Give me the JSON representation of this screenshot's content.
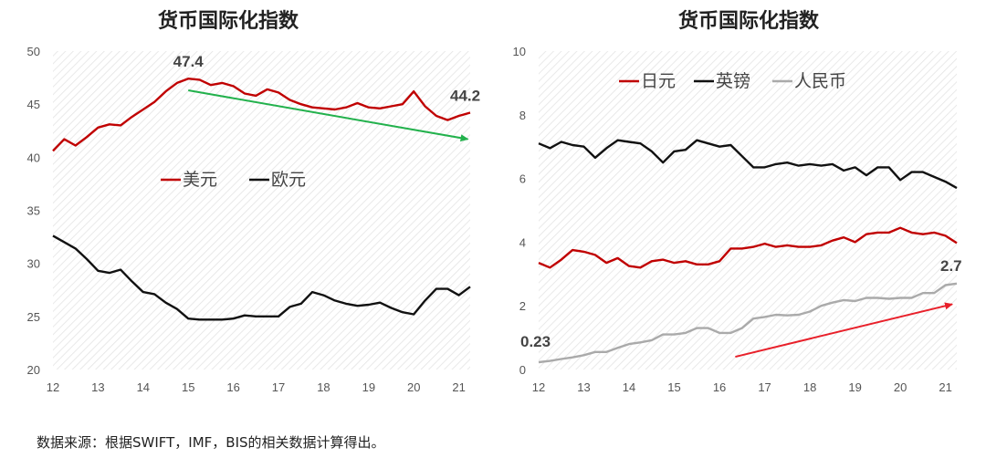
{
  "source": "数据来源：根据SWIFT，IMF，BIS的相关数据计算得出。",
  "colors": {
    "red": "#c00000",
    "black": "#111111",
    "gray": "#aaaaaa",
    "green_arrow": "#22b14c",
    "red_arrow": "#e8202a"
  },
  "chart_data": [
    {
      "type": "line",
      "title": "货币国际化指数",
      "x_ticks": [
        "12",
        "13",
        "14",
        "15",
        "16",
        "17",
        "18",
        "19",
        "20",
        "21"
      ],
      "xlim": [
        12,
        21.25
      ],
      "ylim": [
        20,
        50
      ],
      "y_ticks": [
        "20",
        "25",
        "30",
        "35",
        "40",
        "45",
        "50"
      ],
      "grid": "hatched",
      "legend_placement": "center",
      "series": [
        {
          "name": "美元",
          "color": "#c00000",
          "x": [
            12,
            12.25,
            12.5,
            12.75,
            13,
            13.25,
            13.5,
            13.75,
            14,
            14.25,
            14.5,
            14.75,
            15,
            15.25,
            15.5,
            15.75,
            16,
            16.25,
            16.5,
            16.75,
            17,
            17.25,
            17.5,
            17.75,
            18,
            18.25,
            18.5,
            18.75,
            19,
            19.25,
            19.5,
            19.75,
            20,
            20.25,
            20.5,
            20.75,
            21,
            21.25
          ],
          "values": [
            40.6,
            41.7,
            41.1,
            41.9,
            42.8,
            43.1,
            43.0,
            43.8,
            44.5,
            45.2,
            46.2,
            47.0,
            47.4,
            47.3,
            46.8,
            47.0,
            46.7,
            46.0,
            45.8,
            46.4,
            46.1,
            45.4,
            45.0,
            44.7,
            44.6,
            44.5,
            44.7,
            45.1,
            44.7,
            44.6,
            44.8,
            45.0,
            46.2,
            44.8,
            43.9,
            43.5,
            43.9,
            44.2
          ]
        },
        {
          "name": "欧元",
          "color": "#111111",
          "x": [
            12,
            12.25,
            12.5,
            12.75,
            13,
            13.25,
            13.5,
            13.75,
            14,
            14.25,
            14.5,
            14.75,
            15,
            15.25,
            15.5,
            15.75,
            16,
            16.25,
            16.5,
            16.75,
            17,
            17.25,
            17.5,
            17.75,
            18,
            18.25,
            18.5,
            18.75,
            19,
            19.25,
            19.5,
            19.75,
            20,
            20.25,
            20.5,
            20.75,
            21,
            21.25
          ],
          "values": [
            32.6,
            32.0,
            31.4,
            30.4,
            29.3,
            29.1,
            29.4,
            28.3,
            27.3,
            27.1,
            26.3,
            25.7,
            24.8,
            24.7,
            24.7,
            24.7,
            24.8,
            25.1,
            25.0,
            25.0,
            25.0,
            25.9,
            26.2,
            27.3,
            27.0,
            26.5,
            26.2,
            26.0,
            26.1,
            26.3,
            25.8,
            25.4,
            25.2,
            26.5,
            27.6,
            27.6,
            27.0,
            27.8
          ]
        }
      ],
      "annotations": [
        {
          "text": "47.4",
          "x": 15,
          "y": 47.4
        },
        {
          "text": "44.2",
          "x": 21.25,
          "y": 44.2
        }
      ],
      "arrow": {
        "color": "#22b14c",
        "from": [
          15,
          46.3
        ],
        "to": [
          21.2,
          41.7
        ]
      }
    },
    {
      "type": "line",
      "title": "货币国际化指数",
      "x_ticks": [
        "12",
        "13",
        "14",
        "15",
        "16",
        "17",
        "18",
        "19",
        "20",
        "21"
      ],
      "xlim": [
        12,
        21.25
      ],
      "ylim": [
        0,
        10
      ],
      "y_ticks": [
        "0",
        "2",
        "4",
        "6",
        "8",
        "10"
      ],
      "grid": "hatched",
      "legend_placement": "top",
      "series": [
        {
          "name": "日元",
          "color": "#c00000",
          "x": [
            12,
            12.25,
            12.5,
            12.75,
            13,
            13.25,
            13.5,
            13.75,
            14,
            14.25,
            14.5,
            14.75,
            15,
            15.25,
            15.5,
            15.75,
            16,
            16.25,
            16.5,
            16.75,
            17,
            17.25,
            17.5,
            17.75,
            18,
            18.25,
            18.5,
            18.75,
            19,
            19.25,
            19.5,
            19.75,
            20,
            20.25,
            20.5,
            20.75,
            21,
            21.25
          ],
          "values": [
            3.35,
            3.2,
            3.45,
            3.75,
            3.7,
            3.6,
            3.35,
            3.5,
            3.25,
            3.2,
            3.4,
            3.45,
            3.35,
            3.4,
            3.3,
            3.3,
            3.4,
            3.8,
            3.8,
            3.85,
            3.95,
            3.85,
            3.9,
            3.85,
            3.85,
            3.9,
            4.05,
            4.15,
            4.0,
            4.25,
            4.3,
            4.3,
            4.45,
            4.3,
            4.25,
            4.3,
            4.2,
            3.97
          ]
        },
        {
          "name": "英镑",
          "color": "#111111",
          "x": [
            12,
            12.25,
            12.5,
            12.75,
            13,
            13.25,
            13.5,
            13.75,
            14,
            14.25,
            14.5,
            14.75,
            15,
            15.25,
            15.5,
            15.75,
            16,
            16.25,
            16.5,
            16.75,
            17,
            17.25,
            17.5,
            17.75,
            18,
            18.25,
            18.5,
            18.75,
            19,
            19.25,
            19.5,
            19.75,
            20,
            20.25,
            20.5,
            20.75,
            21,
            21.25
          ],
          "values": [
            7.1,
            6.95,
            7.15,
            7.05,
            7.0,
            6.65,
            6.95,
            7.2,
            7.15,
            7.1,
            6.85,
            6.5,
            6.85,
            6.9,
            7.2,
            7.1,
            7.0,
            7.05,
            6.7,
            6.35,
            6.35,
            6.45,
            6.5,
            6.4,
            6.45,
            6.4,
            6.45,
            6.25,
            6.35,
            6.1,
            6.35,
            6.35,
            5.95,
            6.2,
            6.2,
            6.05,
            5.9,
            5.7
          ]
        },
        {
          "name": "人民币",
          "color": "#aaaaaa",
          "x": [
            12,
            12.25,
            12.5,
            12.75,
            13,
            13.25,
            13.5,
            13.75,
            14,
            14.25,
            14.5,
            14.75,
            15,
            15.25,
            15.5,
            15.75,
            16,
            16.25,
            16.5,
            16.75,
            17,
            17.25,
            17.5,
            17.75,
            18,
            18.25,
            18.5,
            18.75,
            19,
            19.25,
            19.5,
            19.75,
            20,
            20.25,
            20.5,
            20.75,
            21,
            21.25
          ],
          "values": [
            0.23,
            0.27,
            0.33,
            0.38,
            0.45,
            0.55,
            0.55,
            0.68,
            0.8,
            0.85,
            0.92,
            1.1,
            1.1,
            1.15,
            1.3,
            1.3,
            1.15,
            1.15,
            1.3,
            1.6,
            1.65,
            1.72,
            1.7,
            1.72,
            1.82,
            2.0,
            2.1,
            2.18,
            2.15,
            2.25,
            2.25,
            2.22,
            2.25,
            2.25,
            2.4,
            2.4,
            2.65,
            2.7
          ]
        }
      ],
      "annotations": [
        {
          "text": "0.23",
          "x": 12,
          "y": 0.23
        },
        {
          "text": "2.7",
          "x": 21.25,
          "y": 2.7
        }
      ],
      "arrow": {
        "color": "#e8202a",
        "from": [
          16.35,
          0.4
        ],
        "to": [
          21.15,
          2.05
        ]
      }
    }
  ]
}
